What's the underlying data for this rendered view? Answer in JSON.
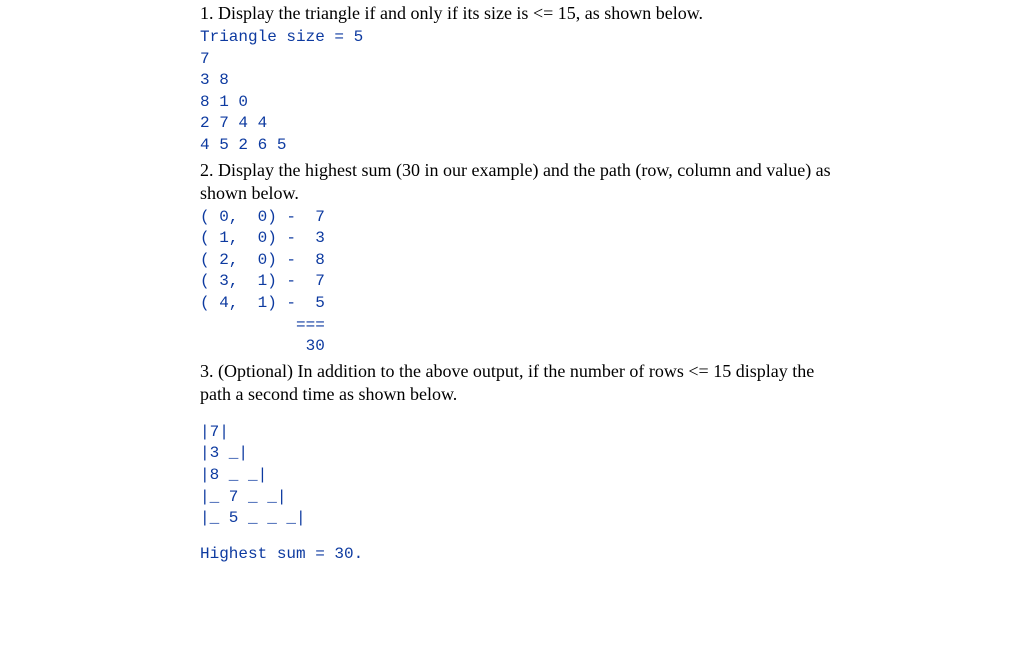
{
  "colors": {
    "code": "#0d3aa0",
    "body": "#000000",
    "background": "#ffffff"
  },
  "typography": {
    "body_font": "Times New Roman, serif",
    "body_size_pt": 13,
    "code_font": "Courier New, monospace",
    "code_size_pt": 12
  },
  "intro_cut": "1. Display the triangle if and only if its size is <= 15, as shown below.",
  "triangle_header": "Triangle size = 5",
  "triangle_rows": [
    "7",
    "3 8",
    "8 1 0",
    "2 7 4 4",
    "4 5 2 6 5"
  ],
  "step2_text": "2. Display the highest sum (30 in our example) and the path (row, column and value) as shown below.",
  "path_lines": [
    "( 0,  0) -  7",
    "( 1,  0) -  3",
    "( 2,  0) -  8",
    "( 3,  1) -  7",
    "( 4,  1) -  5",
    "          ===",
    "           30"
  ],
  "step3_text": "3. (Optional) In addition to the above output, if the number of rows <= 15 display the path a second time as shown below.",
  "path_diagram": [
    "|7|",
    "|3 _|",
    "|8 _ _|",
    "|_ 7 _ _|",
    "|_ 5 _ _ _|"
  ],
  "highest_sum": "Highest sum = 30."
}
